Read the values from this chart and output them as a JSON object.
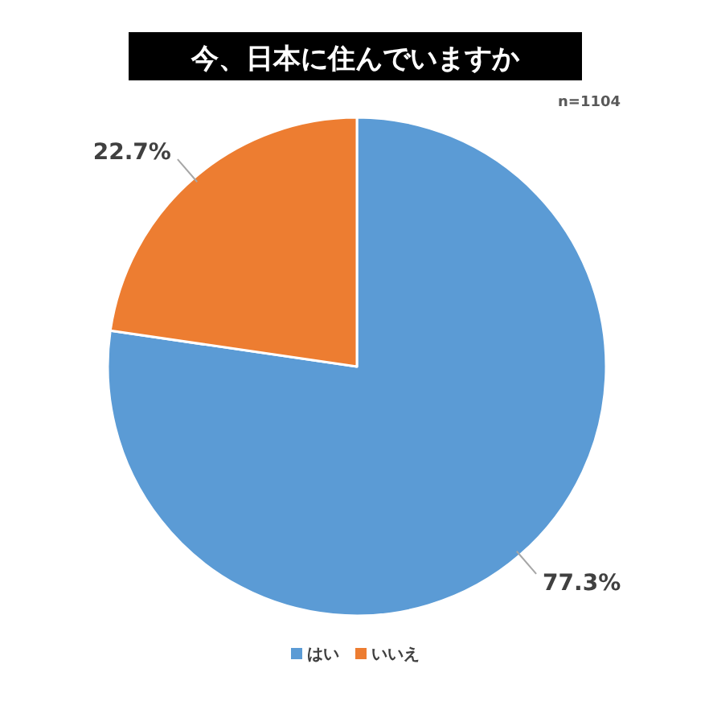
{
  "chart_data": {
    "type": "pie",
    "title": "今、日本に住んでいますか",
    "categories": [
      "はい",
      "いいえ"
    ],
    "values": [
      77.3,
      22.7
    ],
    "colors": [
      "#5b9bd5",
      "#ed7d31"
    ],
    "value_labels": [
      "77.3%",
      "22.7%"
    ],
    "annotations": [
      "n=1104"
    ],
    "legend": "bottom"
  }
}
